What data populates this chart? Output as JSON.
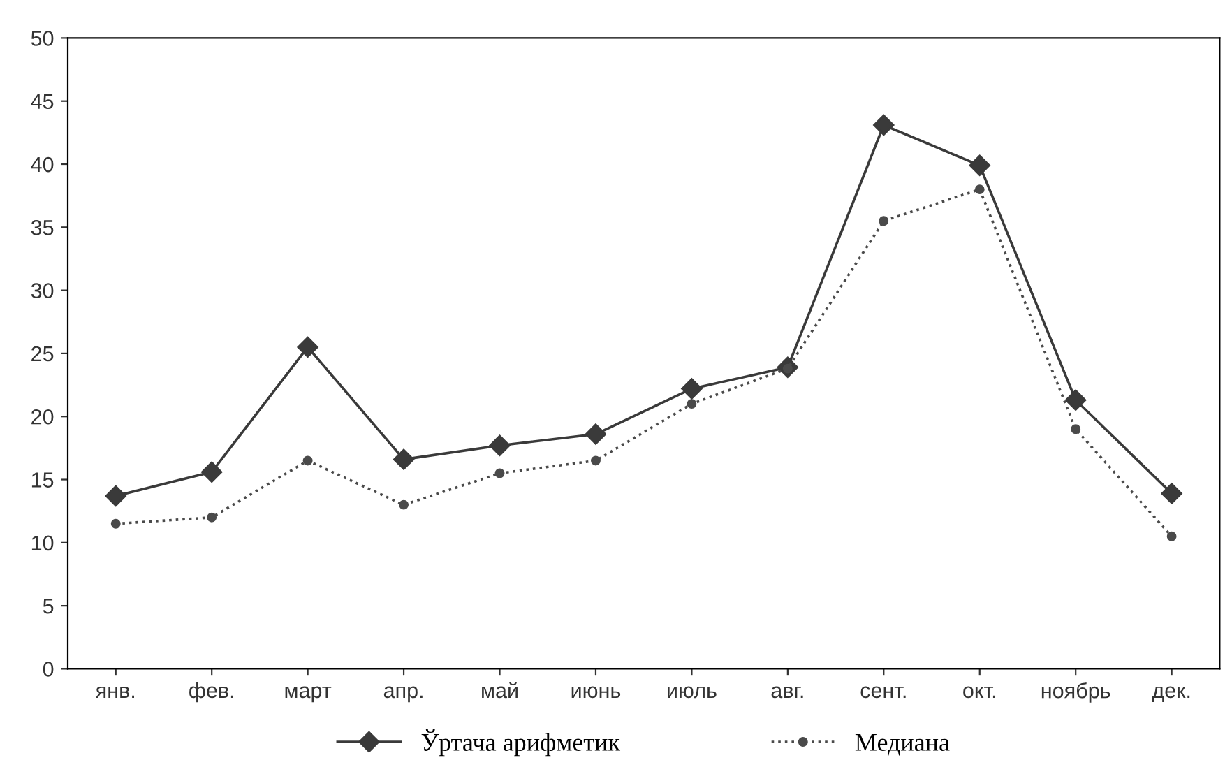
{
  "chart_data": {
    "type": "line",
    "categories": [
      "янв.",
      "фев.",
      "март",
      "апр.",
      "май",
      "июнь",
      "июль",
      "авг.",
      "сент.",
      "окт.",
      "ноябрь",
      "дек."
    ],
    "series": [
      {
        "name": "Ўртача арифметик",
        "color": "#3a3a3a",
        "marker": "diamond",
        "line_style": "solid",
        "values": [
          13.7,
          15.6,
          25.5,
          16.6,
          17.7,
          18.6,
          22.2,
          23.9,
          43.1,
          39.9,
          21.3,
          13.9
        ]
      },
      {
        "name": "Медиана",
        "color": "#4a4a4a",
        "marker": "circle",
        "line_style": "dotted",
        "values": [
          11.5,
          12.0,
          16.5,
          13.0,
          15.5,
          16.5,
          21.0,
          23.8,
          35.5,
          38.0,
          19.0,
          10.5
        ]
      }
    ],
    "ylim": [
      0,
      50
    ],
    "yticks": [
      0,
      5,
      10,
      15,
      20,
      25,
      30,
      35,
      40,
      45,
      50
    ],
    "grid": false,
    "legend": "bottom"
  }
}
